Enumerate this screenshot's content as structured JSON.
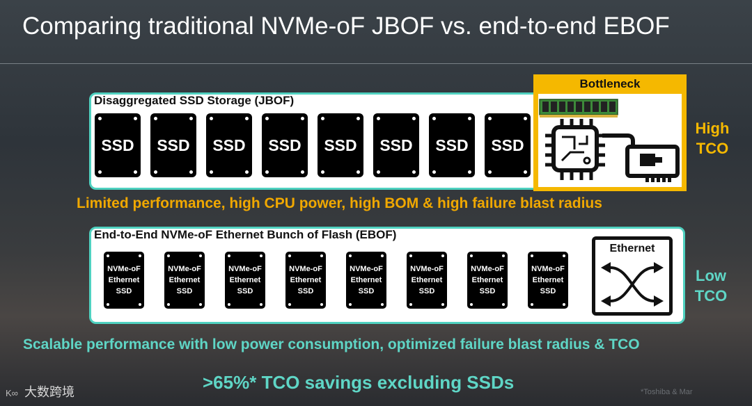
{
  "slide": {
    "title": "Comparing traditional NVMe-oF JBOF vs. end-to-end EBOF"
  },
  "jbof": {
    "panel_label": "Disaggregated SSD Storage (JBOF)",
    "ssds": [
      "SSD",
      "SSD",
      "SSD",
      "SSD",
      "SSD",
      "SSD",
      "SSD",
      "SSD"
    ],
    "bottleneck_label": "Bottleneck",
    "tco_label_line1": "High",
    "tco_label_line2": "TCO",
    "caption": "Limited performance, high CPU power, high BOM & high failure blast radius"
  },
  "ebof": {
    "panel_label": "End-to-End NVMe-oF Ethernet Bunch of Flash (EBOF)",
    "ssd_line1": "NVMe-oF",
    "ssd_line2": "Ethernet",
    "ssd_line3": "SSD",
    "ssd_count": 8,
    "switch_label": "Ethernet",
    "tco_label_line1": "Low",
    "tco_label_line2": "TCO",
    "caption": "Scalable performance with low power consumption, optimized failure blast radius & TCO"
  },
  "savings": ">65%* TCO savings excluding SSDs",
  "footnote": "*Toshiba & Mar",
  "watermark": "大数跨境",
  "colors": {
    "accent_teal": "#4fd1c0",
    "accent_orange": "#f5b800",
    "caption_orange": "#f0a800",
    "caption_teal": "#5fd6c6"
  },
  "icons": [
    "cpu-chip-icon",
    "memory-module-icon",
    "network-card-icon",
    "ethernet-switch-icon"
  ]
}
